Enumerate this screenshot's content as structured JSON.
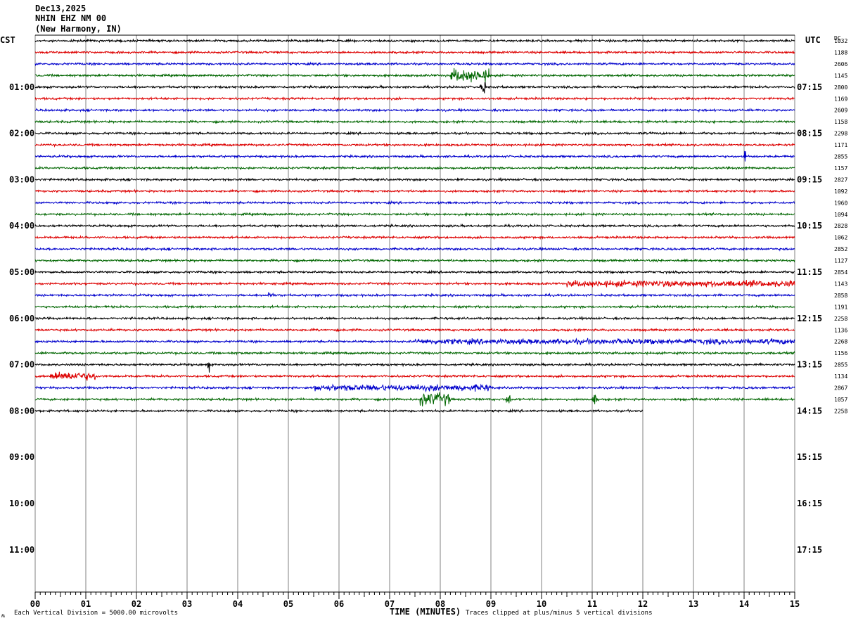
{
  "header": {
    "date": "Dec13,2025",
    "station": "NHIN EHZ NM 00",
    "location": "(New Harmony, IN)"
  },
  "tz": {
    "left": "CST",
    "right": "UTC",
    "dc": "DC"
  },
  "footer": {
    "left": "Each Vertical Division = 5000.00 microvolts",
    "center": "TIME (MINUTES)",
    "right": "Traces clipped at plus/minus 5 vertical divisions",
    "corner": "ʍ"
  },
  "colors": {
    "trace_cycle": [
      "#000000",
      "#dd0000",
      "#0000cc",
      "#006600"
    ],
    "grid": "#808080"
  },
  "chart_data": {
    "type": "line",
    "title": "NHIN EHZ NM 00",
    "xlabel": "TIME (MINUTES)",
    "x_ticks": [
      "00",
      "01",
      "02",
      "03",
      "04",
      "05",
      "06",
      "07",
      "08",
      "09",
      "10",
      "11",
      "12",
      "13",
      "14",
      "15"
    ],
    "xlim": [
      0,
      15
    ],
    "left_hour_labels": [
      "01:00",
      "02:00",
      "03:00",
      "04:00",
      "05:00",
      "06:00",
      "07:00",
      "08:00",
      "09:00",
      "10:00",
      "11:00"
    ],
    "right_hour_labels": [
      "07:15",
      "08:15",
      "09:15",
      "10:15",
      "11:15",
      "12:15",
      "13:15",
      "14:15",
      "15:15",
      "16:15",
      "17:15"
    ],
    "traces_per_hour": 4,
    "trace_count": 33,
    "last_trace_end_minute": 12.0,
    "dc_offsets": [
      "1032",
      "1188",
      "2606",
      "1145",
      "2800",
      "1169",
      "2609",
      "1158",
      "2298",
      "1171",
      "2855",
      "1157",
      "2827",
      "1092",
      "1960",
      "1094",
      "2828",
      "1062",
      "2852",
      "1127",
      "2854",
      "1143",
      "2858",
      "1191",
      "2258",
      "1136",
      "2268",
      "1156",
      "2855",
      "1134",
      "2867",
      "1057",
      "2258"
    ],
    "events": [
      {
        "trace": 3,
        "start_min": 8.2,
        "end_min": 9.0,
        "amp": 6
      },
      {
        "trace": 4,
        "start_min": 8.8,
        "end_min": 8.9,
        "amp": 6
      },
      {
        "trace": 10,
        "start_min": 14.0,
        "end_min": 14.05,
        "amp": 8
      },
      {
        "trace": 21,
        "start_min": 10.5,
        "end_min": 15.0,
        "amp": 3
      },
      {
        "trace": 22,
        "start_min": 4.6,
        "end_min": 4.7,
        "amp": 4
      },
      {
        "trace": 26,
        "start_min": 7.5,
        "end_min": 15.0,
        "amp": 2.5
      },
      {
        "trace": 28,
        "start_min": 3.4,
        "end_min": 3.45,
        "amp": 7
      },
      {
        "trace": 29,
        "start_min": 0.3,
        "end_min": 1.2,
        "amp": 4
      },
      {
        "trace": 30,
        "start_min": 5.5,
        "end_min": 9.0,
        "amp": 3
      },
      {
        "trace": 31,
        "start_min": 7.6,
        "end_min": 8.2,
        "amp": 6
      },
      {
        "trace": 31,
        "start_min": 9.3,
        "end_min": 9.4,
        "amp": 5
      },
      {
        "trace": 31,
        "start_min": 11.0,
        "end_min": 11.1,
        "amp": 5
      }
    ]
  }
}
